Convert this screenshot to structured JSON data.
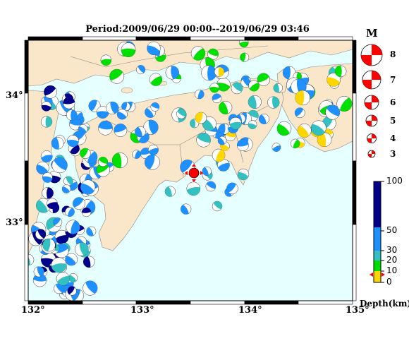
{
  "title": "Period:2009/06/29 00:00--2019/06/29 03:46",
  "colors": {
    "sea": "#e6ffff",
    "land": "#fae6c8",
    "shallow": "#ffd700",
    "green": "#00e000",
    "cyan": "#33c0c0",
    "blue": "#1e90ff",
    "deep": "#00008b",
    "latest": "#ff0000"
  },
  "axes": {
    "x_ticks": [
      "132°",
      "133°",
      "134°",
      "135°"
    ],
    "y_ticks": [
      "34°",
      "33°"
    ]
  },
  "magnitude_legend": {
    "header": "M",
    "entries": [
      "8",
      "7",
      "6",
      "5",
      "4",
      "3"
    ]
  },
  "depth_legend": {
    "unit": "Depth(km)",
    "ticks": [
      "100",
      "50",
      "30",
      "20",
      "10",
      "0"
    ]
  }
}
